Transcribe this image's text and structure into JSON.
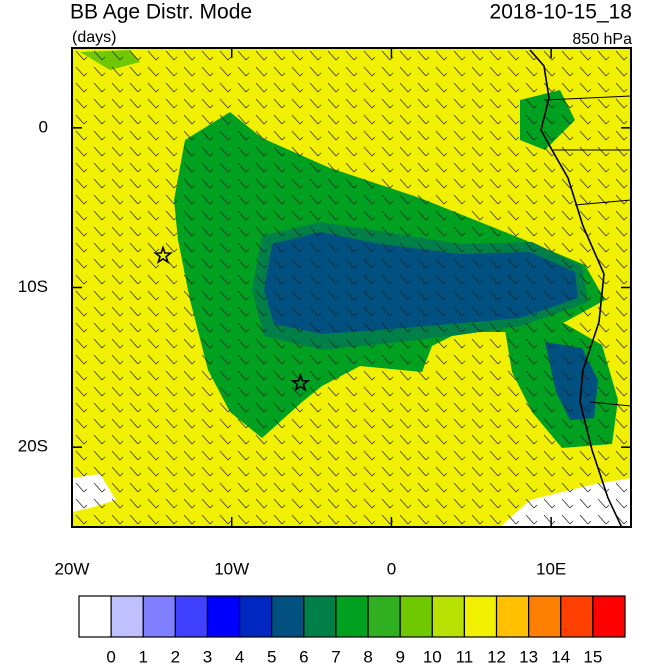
{
  "chart_data": {
    "type": "map",
    "title": "BB Age Distr. Mode",
    "subtitle": "(days)",
    "time_label": "2018-10-15_18",
    "level_label": "850 hPa",
    "xlim": [
      -20,
      15
    ],
    "ylim": [
      -25,
      5
    ],
    "xticks": [
      {
        "value": -20,
        "label": "20W"
      },
      {
        "value": -10,
        "label": "10W"
      },
      0,
      {
        "value": 10,
        "label": "10E"
      }
    ],
    "yticks": [
      0,
      {
        "value": -10,
        "label": "10S"
      },
      {
        "value": -20,
        "label": "20S"
      }
    ],
    "markers": [
      {
        "lon": -14.3,
        "lat": -8
      },
      {
        "lon": -5.7,
        "lat": -16
      }
    ],
    "colorbar_levels": [
      0,
      1,
      2,
      3,
      4,
      5,
      6,
      7,
      8,
      9,
      10,
      11,
      12,
      13,
      14,
      15
    ],
    "colorbar_colors": [
      "#ffffff",
      "#c0c0ff",
      "#8080ff",
      "#4040ff",
      "#0000ff",
      "#0028c0",
      "#005080",
      "#008048",
      "#00a020",
      "#30b020",
      "#70c800",
      "#b8e000",
      "#f0f000",
      "#ffc000",
      "#ff8000",
      "#ff4000",
      "#ff0000"
    ]
  }
}
